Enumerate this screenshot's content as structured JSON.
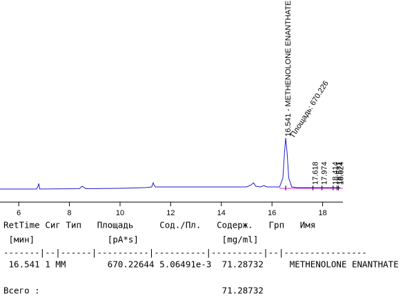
{
  "chart_data": {
    "type": "line",
    "x": [
      5.26,
      6.7,
      6.76,
      6.79,
      6.83,
      8.4,
      8.47,
      8.52,
      8.58,
      8.66,
      10,
      11,
      11.25,
      11.31,
      11.34,
      11.4,
      12,
      14,
      15.0,
      15.18,
      15.27,
      15.36,
      15.55,
      15.68,
      15.8,
      16.3,
      16.43,
      16.49,
      16.541,
      16.6,
      16.66,
      16.78,
      17,
      17.618,
      17.974,
      18.414,
      18.7
    ],
    "series": [
      {
        "color": "#1a1acc",
        "values": [
          19,
          19,
          23,
          27,
          19,
          19.5,
          22,
          23,
          21,
          19.5,
          20,
          21,
          22,
          28,
          25,
          22,
          22,
          22,
          22,
          25,
          28,
          23,
          22,
          24,
          22,
          22,
          35,
          70,
          93,
          70,
          35,
          22,
          21,
          21,
          21,
          21,
          21
        ]
      }
    ],
    "xlim": [
      5.26,
      18.8
    ],
    "ylim": [
      0,
      293
    ],
    "xticks": [
      6,
      8,
      10,
      12,
      14,
      16,
      18
    ],
    "peaks": [
      {
        "x": 16.541,
        "label": "16.541 - METHENOLONE ENANTHATE",
        "area_label": "Площадь: 670.226"
      },
      {
        "x": 17.618,
        "label": "17.618"
      },
      {
        "x": 17.974,
        "label": "17.974"
      },
      {
        "x": 18.414,
        "label": "18.414"
      },
      {
        "x": 18.571,
        "label": "18.571"
      },
      {
        "x": 18.624,
        "label": "18.624"
      }
    ]
  },
  "report": {
    "header": [
      "RetTime",
      "Сиг",
      "Тип",
      "Площадь",
      "Сод./Пл.",
      "Содерж.",
      "Грп",
      "Имя"
    ],
    "units": [
      "[мин]",
      "[pA*s]",
      "[mg/ml]"
    ],
    "separator": "-------|--|------|----------|----------|----------|--|----------------",
    "row": [
      "16.541",
      "1",
      "MM",
      "670.22644",
      "5.06491e-3",
      "71.28732",
      "METHENOLONE ENANTHATE"
    ],
    "total_label": "Всего :",
    "total": "71.28732"
  }
}
